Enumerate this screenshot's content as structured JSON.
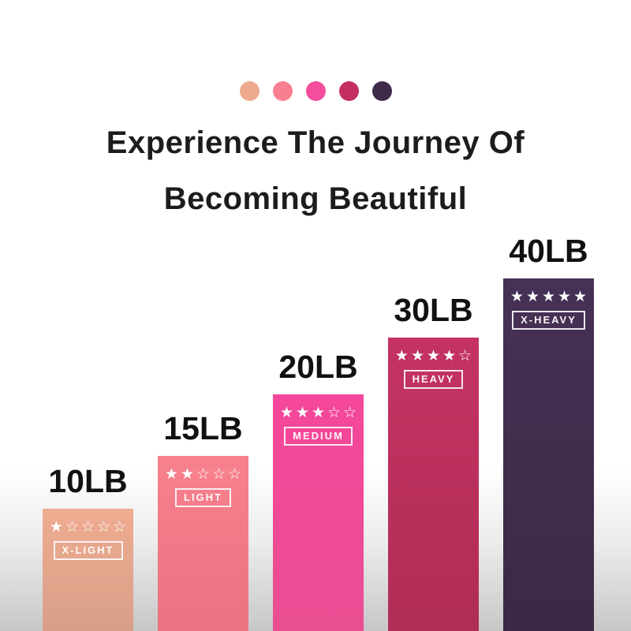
{
  "title": {
    "line1": "Experience The Journey Of",
    "line2": "Becoming Beautiful"
  },
  "palette_dots": [
    {
      "name": "x-light-dot",
      "color": "#edaa8d"
    },
    {
      "name": "light-dot",
      "color": "#f87e90"
    },
    {
      "name": "medium-dot",
      "color": "#f44d9b"
    },
    {
      "name": "heavy-dot",
      "color": "#c42f60"
    },
    {
      "name": "x-heavy-dot",
      "color": "#3f2b49"
    }
  ],
  "bars": [
    {
      "weight": "10LB",
      "label": "X-LIGHT",
      "stars_text": "★☆☆☆☆",
      "stars_filled": 1,
      "stars_total": 5,
      "color_top": "#efac91",
      "color_bottom": "#d89f88"
    },
    {
      "weight": "15LB",
      "label": "LIGHT",
      "stars_text": "★★☆☆☆",
      "stars_filled": 2,
      "stars_total": 5,
      "color_top": "#f8818e",
      "color_bottom": "#eb7281"
    },
    {
      "weight": "20LB",
      "label": "MEDIUM",
      "stars_text": "★★★☆☆",
      "stars_filled": 3,
      "stars_total": 5,
      "color_top": "#f5479b",
      "color_bottom": "#e94e92"
    },
    {
      "weight": "30LB",
      "label": "HEAVY",
      "stars_text": "★★★★☆",
      "stars_filled": 4,
      "stars_total": 5,
      "color_top": "#c43362",
      "color_bottom": "#b02d55"
    },
    {
      "weight": "40LB",
      "label": "X-HEAVY",
      "stars_text": "★★★★★",
      "stars_filled": 5,
      "stars_total": 5,
      "color_top": "#473156",
      "color_bottom": "#3a2a45"
    }
  ],
  "page": {
    "background_top": "#ffffff",
    "background_bottom": "#c7c7c7"
  },
  "chart_data": {
    "type": "bar",
    "title": "Experience The Journey Of Becoming Beautiful",
    "categories": [
      "X-LIGHT",
      "LIGHT",
      "MEDIUM",
      "HEAVY",
      "X-HEAVY"
    ],
    "values": [
      10,
      15,
      20,
      30,
      40
    ],
    "value_labels": [
      "10LB",
      "15LB",
      "20LB",
      "30LB",
      "40LB"
    ],
    "star_ratings": [
      1,
      2,
      3,
      4,
      5
    ],
    "bar_colors": [
      "#e8a58b",
      "#f57f8b",
      "#f4479a",
      "#c03060",
      "#43304f"
    ],
    "xlabel": "",
    "ylabel": "",
    "legend": false,
    "grid": false,
    "orientation": "vertical"
  }
}
